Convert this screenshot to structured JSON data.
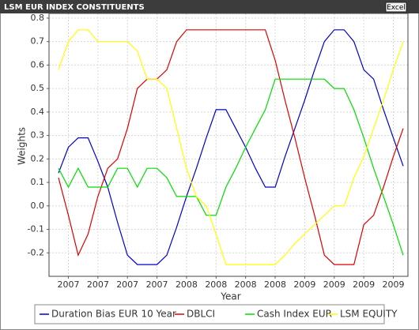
{
  "header": {
    "title": "LSM EUR INDEX CONSTITUENTS",
    "button": "Excel"
  },
  "chart_data": {
    "type": "line",
    "x_label": "Year",
    "y_label": "Weights",
    "categories": [
      null,
      "2007",
      null,
      null,
      "2007",
      null,
      null,
      "2007",
      null,
      null,
      "2007",
      null,
      null,
      "2008",
      null,
      null,
      "2008",
      null,
      null,
      "2008",
      null,
      null,
      "2008",
      null,
      null,
      "2009",
      null,
      null,
      "2009",
      null,
      null,
      "2009",
      null,
      null,
      "2009",
      null
    ],
    "ylim": [
      -0.3,
      0.82
    ],
    "yticks": [
      -0.2,
      -0.1,
      {
        "value": 0,
        "label": "0.0"
      },
      0.1,
      0.2,
      0.3,
      0.4,
      0.5,
      0.6,
      0.7,
      0.8
    ],
    "grid": true,
    "legend": "bottom",
    "series": [
      {
        "name": "Duration Bias EUR 10 Year",
        "color": "#0000cc",
        "values": [
          0.14,
          0.25,
          0.29,
          0.29,
          0.19,
          0.08,
          -0.07,
          -0.21,
          -0.25,
          -0.25,
          -0.25,
          -0.21,
          -0.09,
          0.04,
          0.16,
          0.29,
          0.41,
          0.41,
          0.33,
          0.25,
          0.16,
          0.08,
          0.08,
          0.21,
          0.33,
          0.45,
          0.58,
          0.7,
          0.75,
          0.75,
          0.7,
          0.58,
          0.54,
          0.41,
          0.29,
          0.17
        ]
      },
      {
        "name": "DBLCI",
        "color": "#dd0000",
        "values": [
          0.12,
          -0.04,
          -0.21,
          -0.12,
          0.04,
          0.16,
          0.2,
          0.33,
          0.5,
          0.54,
          0.54,
          0.58,
          0.7,
          0.75,
          0.75,
          0.75,
          0.75,
          0.75,
          0.75,
          0.75,
          0.75,
          0.75,
          0.62,
          0.45,
          0.29,
          0.12,
          -0.04,
          -0.21,
          -0.25,
          -0.25,
          -0.25,
          -0.08,
          -0.04,
          0.08,
          0.21,
          0.33
        ]
      },
      {
        "name": "Cash Index EUR",
        "color": "#00dd00",
        "values": [
          0.16,
          0.08,
          0.16,
          0.08,
          0.08,
          0.08,
          0.16,
          0.16,
          0.08,
          0.16,
          0.16,
          0.12,
          0.04,
          0.04,
          0.04,
          -0.04,
          -0.04,
          0.08,
          0.16,
          0.25,
          0.33,
          0.41,
          0.54,
          0.54,
          0.54,
          0.54,
          0.54,
          0.54,
          0.5,
          0.5,
          0.41,
          0.29,
          0.16,
          0.04,
          -0.08,
          -0.21
        ]
      },
      {
        "name": "LSM EQUITY",
        "color": "#ffff00",
        "values": [
          0.58,
          0.7,
          0.75,
          0.75,
          0.7,
          0.7,
          0.7,
          0.7,
          0.66,
          0.54,
          0.54,
          0.5,
          0.33,
          0.16,
          0.04,
          0.0,
          -0.12,
          -0.25,
          -0.25,
          -0.25,
          -0.25,
          -0.25,
          -0.25,
          -0.21,
          -0.16,
          -0.12,
          -0.08,
          -0.04,
          0.0,
          0.0,
          0.12,
          0.21,
          0.33,
          0.45,
          0.58,
          0.7
        ]
      }
    ]
  }
}
